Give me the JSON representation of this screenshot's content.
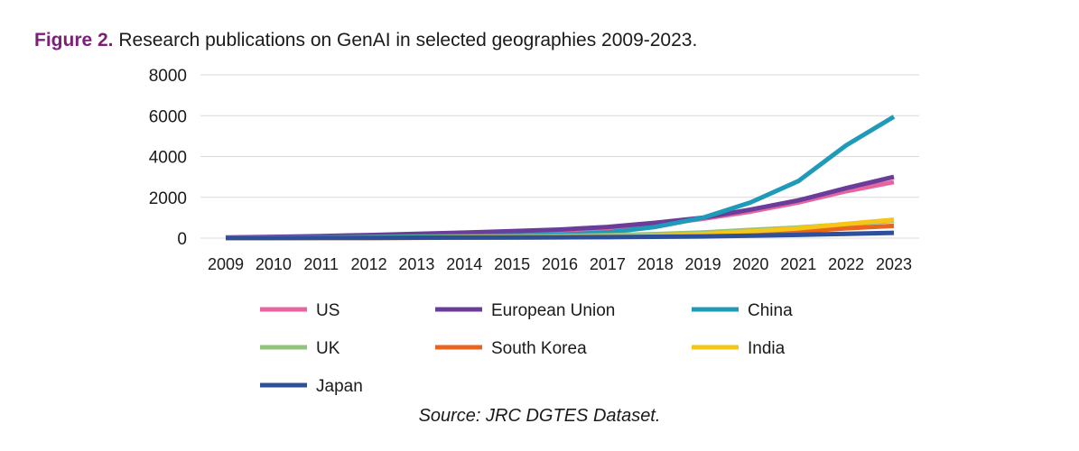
{
  "figure": {
    "label": "Figure 2.",
    "caption": "Research publications on GenAI in selected geographies 2009-2023."
  },
  "source": "Source: JRC DGTES Dataset.",
  "chart_data": {
    "type": "line",
    "title": "Research publications on GenAI in selected geographies 2009-2023.",
    "xlabel": "",
    "ylabel": "",
    "ylim": [
      0,
      8000
    ],
    "yticks": [
      0,
      2000,
      4000,
      6000,
      8000
    ],
    "grid": true,
    "legend_position": "bottom",
    "categories": [
      "2009",
      "2010",
      "2011",
      "2012",
      "2013",
      "2014",
      "2015",
      "2016",
      "2017",
      "2018",
      "2019",
      "2020",
      "2021",
      "2022",
      "2023"
    ],
    "series": [
      {
        "name": "US",
        "color": "#e8649e",
        "values": [
          20,
          50,
          80,
          120,
          170,
          220,
          280,
          350,
          450,
          650,
          950,
          1300,
          1750,
          2300,
          2750
        ]
      },
      {
        "name": "European Union",
        "color": "#6a3d9a",
        "values": [
          30,
          60,
          100,
          150,
          210,
          270,
          340,
          420,
          550,
          750,
          1000,
          1400,
          1850,
          2450,
          3000
        ]
      },
      {
        "name": "China",
        "color": "#1f9ab8",
        "values": [
          10,
          20,
          30,
          50,
          70,
          100,
          130,
          170,
          280,
          550,
          1000,
          1750,
          2800,
          4550,
          5950
        ]
      },
      {
        "name": "UK",
        "color": "#92c47d",
        "values": [
          5,
          10,
          20,
          30,
          45,
          60,
          80,
          100,
          140,
          200,
          280,
          400,
          520,
          680,
          850
        ]
      },
      {
        "name": "South Korea",
        "color": "#e8651f",
        "values": [
          2,
          5,
          8,
          12,
          18,
          25,
          35,
          45,
          60,
          90,
          140,
          220,
          330,
          480,
          600
        ]
      },
      {
        "name": "India",
        "color": "#f5c518",
        "values": [
          3,
          6,
          10,
          15,
          22,
          30,
          40,
          55,
          80,
          120,
          200,
          330,
          480,
          700,
          900
        ]
      },
      {
        "name": "Japan",
        "color": "#2e4f9a",
        "values": [
          3,
          6,
          10,
          15,
          20,
          25,
          32,
          40,
          50,
          65,
          85,
          120,
          160,
          210,
          260
        ]
      }
    ]
  }
}
